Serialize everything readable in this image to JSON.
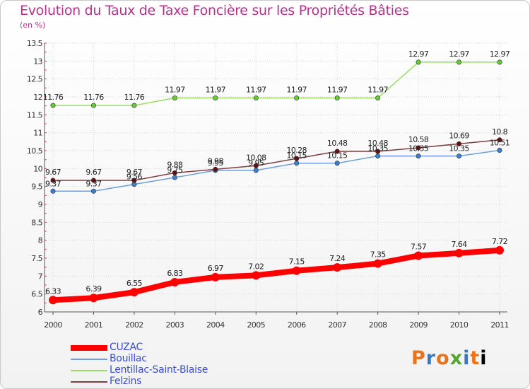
{
  "page": {
    "title": "Evolution du Taux de Taxe Foncière sur les Propriétés Bâties",
    "unit": "(en %)"
  },
  "logo": {
    "text": [
      "P",
      "r",
      "o",
      "x",
      "i",
      "t",
      "i"
    ]
  },
  "colors": {
    "cuzac": "#ff0000",
    "bouillac": "#6f9fd8",
    "lentillac": "#99dd66",
    "felzins": "#7f3f3f",
    "bouillac_marker": "#3a7fd0",
    "lentillac_marker": "#66cc33",
    "felzins_marker": "#661111",
    "grid": "#cfd8e6"
  },
  "chart_data": {
    "type": "line",
    "title": "Evolution du Taux de Taxe Foncière sur les Propriétés Bâties",
    "ylabel": "(en %)",
    "xlabel": "",
    "categories": [
      "2000",
      "2001",
      "2002",
      "2003",
      "2004",
      "2005",
      "2006",
      "2007",
      "2008",
      "2009",
      "2010",
      "2011"
    ],
    "ylim": [
      6,
      13.5
    ],
    "yticks": [
      "6",
      "6.5",
      "7",
      "7.5",
      "8",
      "8.5",
      "9",
      "9.5",
      "10",
      "10.5",
      "11",
      "11.5",
      "12",
      "12.5",
      "13",
      "13.5"
    ],
    "series": [
      {
        "name": "CUZAC",
        "key": "cuzac",
        "values": [
          6.33,
          6.39,
          6.55,
          6.83,
          6.97,
          7.02,
          7.15,
          7.24,
          7.35,
          7.57,
          7.64,
          7.72
        ],
        "labels": [
          "6.33",
          "6.39",
          "6.55",
          "6.83",
          "6.97",
          "7.02",
          "7.15",
          "7.24",
          "7.35",
          "7.57",
          "7.64",
          "7.72"
        ]
      },
      {
        "name": "Bouillac",
        "key": "bouillac",
        "values": [
          9.37,
          9.37,
          9.56,
          9.75,
          9.95,
          9.95,
          10.15,
          10.15,
          10.35,
          10.35,
          10.35,
          10.51
        ],
        "labels": [
          "9.37",
          "9.37",
          "9.56",
          "9.75",
          "9.95",
          "9.95",
          "10.15",
          "10.15",
          "10.35",
          "10.35",
          "10.35",
          "10.51"
        ]
      },
      {
        "name": "Lentillac-Saint-Blaise",
        "key": "lentillac",
        "values": [
          11.76,
          11.76,
          11.76,
          11.97,
          11.97,
          11.97,
          11.97,
          11.97,
          11.97,
          12.97,
          12.97,
          12.97
        ],
        "labels": [
          "11.76",
          "11.76",
          "11.76",
          "11.97",
          "11.97",
          "11.97",
          "11.97",
          "11.97",
          "11.97",
          "12.97",
          "12.97",
          "12.97"
        ]
      },
      {
        "name": "Felzins",
        "key": "felzins",
        "values": [
          9.67,
          9.67,
          9.67,
          9.88,
          9.98,
          10.08,
          10.28,
          10.48,
          10.48,
          10.58,
          10.69,
          10.8
        ],
        "labels": [
          "9.67",
          "9.67",
          "9.67",
          "9.88",
          "9.98",
          "10.08",
          "10.28",
          "10.48",
          "10.48",
          "10.58",
          "10.69",
          "10.8"
        ]
      }
    ],
    "legend": [
      "CUZAC",
      "Bouillac",
      "Lentillac-Saint-Blaise",
      "Felzins"
    ],
    "legend_position": "bottom-left",
    "grid": true
  }
}
